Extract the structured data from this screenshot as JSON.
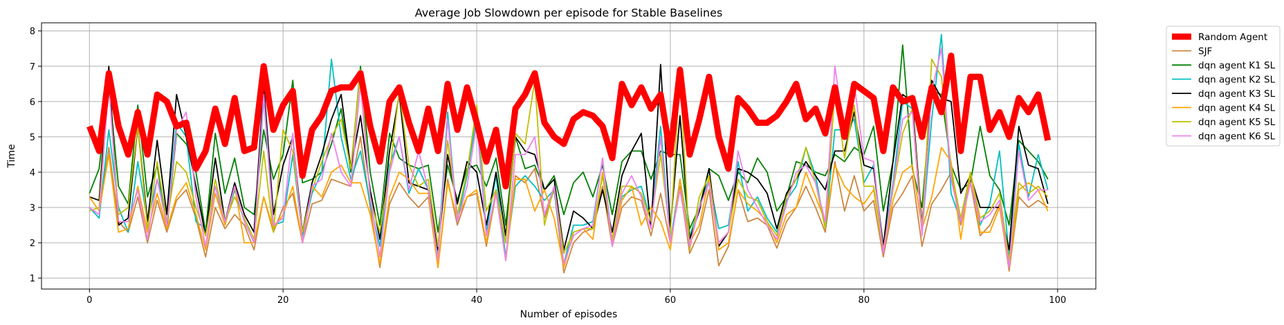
{
  "chart_data": {
    "type": "line",
    "title": "Average Job Slowdown per episode for Stable Baselines",
    "xlabel": "Number of episodes",
    "ylabel": "Time",
    "xlim": [
      -4.95,
      103.95
    ],
    "ylim": [
      0.69,
      8.23
    ],
    "xticks": [
      0,
      20,
      40,
      60,
      80,
      100
    ],
    "yticks": [
      1,
      2,
      3,
      4,
      5,
      6,
      7,
      8
    ],
    "grid": true,
    "legend_position": "outside-right",
    "x": [
      0,
      1,
      2,
      3,
      4,
      5,
      6,
      7,
      8,
      9,
      10,
      11,
      12,
      13,
      14,
      15,
      16,
      17,
      18,
      19,
      20,
      21,
      22,
      23,
      24,
      25,
      26,
      27,
      28,
      29,
      30,
      31,
      32,
      33,
      34,
      35,
      36,
      37,
      38,
      39,
      40,
      41,
      42,
      43,
      44,
      45,
      46,
      47,
      48,
      49,
      50,
      51,
      52,
      53,
      54,
      55,
      56,
      57,
      58,
      59,
      60,
      61,
      62,
      63,
      64,
      65,
      66,
      67,
      68,
      69,
      70,
      71,
      72,
      73,
      74,
      75,
      76,
      77,
      78,
      79,
      80,
      81,
      82,
      83,
      84,
      85,
      86,
      87,
      88,
      89,
      90,
      91,
      92,
      93,
      94,
      95,
      96,
      97,
      98,
      99
    ],
    "series": [
      {
        "name": "Random Agent",
        "color": "#ff0000",
        "width": 9,
        "values": [
          5.3,
          4.6,
          6.8,
          5.3,
          4.5,
          5.7,
          4.5,
          6.2,
          6.0,
          5.3,
          5.4,
          4.1,
          4.6,
          5.8,
          4.8,
          6.1,
          4.6,
          4.7,
          7.0,
          5.2,
          5.9,
          6.3,
          3.9,
          5.2,
          5.6,
          6.3,
          6.4,
          6.4,
          6.8,
          5.3,
          4.3,
          6.0,
          6.4,
          5.4,
          4.6,
          5.8,
          4.6,
          6.5,
          5.2,
          6.4,
          5.4,
          4.3,
          5.2,
          3.6,
          5.8,
          6.2,
          6.8,
          5.4,
          5.0,
          4.8,
          5.5,
          5.7,
          5.6,
          5.3,
          4.4,
          6.5,
          5.9,
          6.4,
          5.8,
          6.2,
          4.5,
          6.9,
          4.5,
          5.5,
          6.7,
          5.0,
          4.1,
          6.1,
          5.8,
          5.4,
          5.4,
          5.6,
          6.0,
          6.5,
          5.5,
          5.8,
          5.1,
          6.4,
          5.0,
          6.5,
          6.3,
          6.1,
          4.6,
          6.4,
          6.0,
          6.1,
          5.0,
          6.4,
          5.7,
          7.3,
          4.6,
          6.7,
          6.7,
          5.2,
          5.7,
          5.0,
          6.1,
          5.7,
          6.2,
          4.9
        ]
      },
      {
        "name": "SJF",
        "color": "#cd853f",
        "width": 1.8,
        "values": [
          3.0,
          2.8,
          4.7,
          2.6,
          2.3,
          3.3,
          2.0,
          3.2,
          2.3,
          3.2,
          3.5,
          2.7,
          1.6,
          3.0,
          2.4,
          2.8,
          2.5,
          1.8,
          3.3,
          2.3,
          3.0,
          3.4,
          2.0,
          3.1,
          3.2,
          3.8,
          3.7,
          3.6,
          5.0,
          3.0,
          1.3,
          3.1,
          3.7,
          3.3,
          3.0,
          3.3,
          1.3,
          3.8,
          2.5,
          3.3,
          3.4,
          1.9,
          3.4,
          1.5,
          3.9,
          3.7,
          4.1,
          2.7,
          3.5,
          1.15,
          2.0,
          2.3,
          2.4,
          3.6,
          1.9,
          3.0,
          3.3,
          3.2,
          2.2,
          3.4,
          2.0,
          3.6,
          1.7,
          2.3,
          3.5,
          1.35,
          1.9,
          3.5,
          2.6,
          2.7,
          2.5,
          1.85,
          2.6,
          3.0,
          3.6,
          3.0,
          2.3,
          4.3,
          2.9,
          3.9,
          2.9,
          3.2,
          1.6,
          3.0,
          3.4,
          3.9,
          1.9,
          3.1,
          3.5,
          4.0,
          2.5,
          3.7,
          2.2,
          2.5,
          3.1,
          1.2,
          3.3,
          3.0,
          3.2,
          3.0
        ]
      },
      {
        "name": "dqn agent K1 SL",
        "color": "#008000",
        "width": 1.8,
        "values": [
          3.4,
          4.1,
          6.5,
          3.6,
          3.1,
          5.9,
          3.3,
          4.2,
          2.4,
          5.1,
          4.8,
          4.0,
          2.3,
          5.1,
          3.4,
          4.4,
          3.0,
          2.8,
          5.2,
          3.8,
          4.5,
          6.6,
          3.7,
          3.8,
          4.0,
          4.8,
          5.8,
          4.0,
          7.0,
          4.0,
          2.5,
          5.1,
          4.4,
          4.2,
          4.1,
          4.2,
          2.3,
          4.2,
          3.2,
          4.1,
          4.2,
          3.6,
          4.4,
          2.5,
          5.0,
          4.1,
          4.2,
          3.5,
          3.9,
          2.8,
          3.7,
          4.0,
          3.3,
          4.2,
          2.8,
          4.3,
          4.6,
          4.6,
          3.8,
          4.6,
          4.5,
          4.5,
          2.4,
          3.0,
          4.1,
          3.9,
          3.2,
          4.0,
          3.7,
          4.4,
          4.0,
          2.9,
          3.3,
          4.3,
          4.2,
          4.0,
          3.9,
          4.5,
          4.3,
          4.7,
          4.5,
          5.3,
          2.9,
          4.3,
          7.6,
          4.1,
          3.0,
          6.3,
          6.2,
          4.2,
          3.5,
          3.7,
          5.3,
          3.9,
          3.5,
          2.5,
          4.9,
          4.6,
          4.3,
          3.8
        ]
      },
      {
        "name": "dqn agent K2 SL",
        "color": "#00bfbf",
        "width": 1.8,
        "values": [
          3.0,
          2.7,
          5.2,
          3.0,
          2.3,
          4.3,
          2.6,
          3.8,
          2.8,
          5.4,
          5.0,
          2.6,
          2.4,
          3.6,
          2.5,
          3.5,
          2.6,
          2.0,
          6.1,
          2.5,
          2.6,
          4.5,
          2.2,
          3.4,
          4.0,
          7.2,
          5.0,
          3.8,
          4.6,
          3.1,
          1.9,
          4.2,
          5.0,
          3.4,
          4.1,
          3.5,
          1.7,
          5.7,
          2.6,
          3.9,
          5.6,
          2.3,
          3.9,
          1.6,
          3.6,
          3.9,
          3.6,
          3.2,
          3.5,
          1.4,
          2.5,
          2.5,
          2.6,
          4.4,
          2.0,
          3.3,
          3.5,
          3.6,
          2.6,
          5.3,
          2.0,
          3.8,
          2.2,
          3.0,
          3.8,
          2.4,
          2.5,
          4.3,
          2.9,
          3.3,
          2.7,
          2.3,
          3.2,
          3.6,
          4.7,
          3.9,
          2.4,
          5.2,
          5.2,
          5.5,
          3.7,
          4.2,
          1.9,
          3.7,
          6.0,
          5.8,
          2.3,
          5.5,
          7.9,
          3.4,
          2.6,
          4.0,
          2.5,
          3.1,
          4.6,
          1.6,
          4.8,
          3.3,
          4.5,
          3.5
        ]
      },
      {
        "name": "dqn agent K3 SL",
        "color": "#000000",
        "width": 1.8,
        "values": [
          3.3,
          3.2,
          7.0,
          2.5,
          2.7,
          5.3,
          2.6,
          4.9,
          2.8,
          6.2,
          5.0,
          3.6,
          2.2,
          4.4,
          2.6,
          3.7,
          2.8,
          2.3,
          6.5,
          2.8,
          4.2,
          5.0,
          2.3,
          3.7,
          4.5,
          5.5,
          6.2,
          4.1,
          5.6,
          3.5,
          2.1,
          4.6,
          6.2,
          3.7,
          3.6,
          3.5,
          1.8,
          4.5,
          3.1,
          4.3,
          4.0,
          2.5,
          4.0,
          2.2,
          5.0,
          4.6,
          4.5,
          3.5,
          3.8,
          1.8,
          2.9,
          2.7,
          2.4,
          3.5,
          2.3,
          3.9,
          4.6,
          5.1,
          2.4,
          7.05,
          2.4,
          5.6,
          2.1,
          2.9,
          4.1,
          1.9,
          2.3,
          4.1,
          4.0,
          3.8,
          3.4,
          2.4,
          3.4,
          3.8,
          4.3,
          3.9,
          3.5,
          4.6,
          4.6,
          5.7,
          4.2,
          4.1,
          1.9,
          4.3,
          6.2,
          6.0,
          2.5,
          6.6,
          6.1,
          6.0,
          3.4,
          3.9,
          3.0,
          3.0,
          3.0,
          1.8,
          5.3,
          4.2,
          4.1,
          3.1
        ]
      },
      {
        "name": "dqn agent K4 SL",
        "color": "#ffa500",
        "width": 1.8,
        "values": [
          3.3,
          2.9,
          4.5,
          2.3,
          2.4,
          3.6,
          2.3,
          3.4,
          2.4,
          3.3,
          3.7,
          2.8,
          1.8,
          3.4,
          2.5,
          3.6,
          2.0,
          2.0,
          3.3,
          2.4,
          2.8,
          3.6,
          2.0,
          3.6,
          3.3,
          4.0,
          4.2,
          3.7,
          3.7,
          2.8,
          1.4,
          3.3,
          4.0,
          3.8,
          3.4,
          3.4,
          1.3,
          3.7,
          2.7,
          3.3,
          3.5,
          2.0,
          3.5,
          1.5,
          3.8,
          3.8,
          2.9,
          3.5,
          2.7,
          1.3,
          2.3,
          2.4,
          2.1,
          4.0,
          2.0,
          3.2,
          3.6,
          2.5,
          3.0,
          2.6,
          1.8,
          3.8,
          2.0,
          2.5,
          3.8,
          1.8,
          2.0,
          3.5,
          3.1,
          2.9,
          2.6,
          2.0,
          2.8,
          3.0,
          4.0,
          3.3,
          2.6,
          4.2,
          3.6,
          3.3,
          3.1,
          3.5,
          1.8,
          3.2,
          4.0,
          4.2,
          2.4,
          3.3,
          4.7,
          4.3,
          2.1,
          4.0,
          2.3,
          2.3,
          3.0,
          1.3,
          3.5,
          3.7,
          3.5,
          2.9
        ]
      },
      {
        "name": "dqn agent K5 SL",
        "color": "#bfbf00",
        "width": 1.8,
        "values": [
          2.9,
          3.0,
          6.5,
          2.8,
          3.0,
          5.3,
          2.4,
          4.3,
          2.6,
          4.3,
          4.0,
          3.0,
          2.2,
          3.8,
          2.6,
          3.3,
          2.7,
          2.1,
          4.6,
          2.3,
          5.2,
          4.6,
          2.3,
          3.5,
          4.3,
          5.0,
          5.5,
          4.1,
          6.9,
          3.2,
          2.3,
          4.0,
          6.3,
          4.2,
          3.6,
          3.8,
          1.9,
          4.9,
          2.8,
          4.0,
          5.9,
          2.9,
          3.5,
          2.0,
          5.1,
          4.8,
          6.6,
          2.5,
          3.6,
          1.7,
          2.3,
          2.4,
          2.4,
          3.9,
          2.1,
          3.6,
          3.6,
          3.4,
          2.6,
          4.5,
          2.2,
          6.8,
          1.8,
          3.3,
          3.9,
          2.0,
          2.3,
          3.8,
          3.3,
          3.2,
          2.6,
          2.2,
          3.3,
          3.8,
          4.7,
          3.7,
          2.4,
          6.3,
          4.4,
          5.9,
          3.6,
          3.6,
          1.8,
          3.5,
          5.1,
          5.8,
          2.4,
          7.2,
          6.7,
          4.1,
          2.7,
          4.0,
          2.7,
          2.9,
          3.4,
          1.5,
          3.7,
          3.4,
          3.6,
          3.3
        ]
      },
      {
        "name": "dqn agent K6 SL",
        "color": "#ee82ee",
        "width": 1.8,
        "values": [
          3.0,
          2.8,
          6.5,
          2.6,
          2.6,
          3.5,
          2.1,
          3.8,
          2.5,
          5.2,
          5.7,
          3.3,
          1.9,
          3.6,
          2.6,
          3.6,
          2.6,
          2.0,
          6.2,
          2.5,
          2.7,
          5.1,
          2.0,
          3.6,
          3.8,
          5.1,
          4.0,
          3.6,
          6.5,
          3.3,
          1.6,
          4.0,
          5.0,
          3.5,
          4.6,
          3.5,
          1.5,
          5.5,
          2.6,
          3.6,
          5.4,
          2.2,
          3.4,
          1.5,
          4.5,
          4.5,
          5.0,
          2.8,
          3.6,
          1.4,
          2.2,
          2.4,
          2.5,
          4.4,
          1.9,
          3.4,
          3.9,
          3.3,
          2.4,
          5.0,
          2.0,
          3.5,
          1.9,
          3.0,
          3.7,
          2.0,
          2.3,
          4.6,
          3.5,
          3.0,
          2.5,
          2.1,
          3.1,
          4.0,
          4.2,
          3.7,
          2.6,
          7.0,
          5.1,
          6.5,
          4.4,
          4.3,
          1.7,
          3.6,
          5.5,
          5.7,
          2.2,
          6.3,
          7.5,
          3.8,
          2.6,
          3.7,
          2.6,
          2.8,
          3.2,
          1.3,
          4.6,
          3.2,
          3.5,
          3.5
        ]
      }
    ]
  }
}
